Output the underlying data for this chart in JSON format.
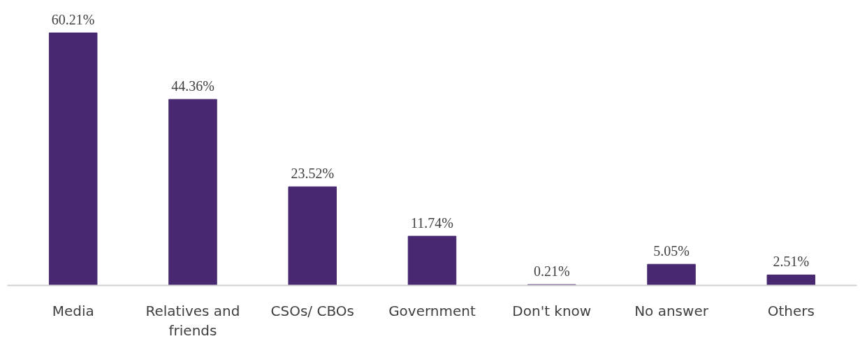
{
  "chart_data": {
    "type": "bar",
    "categories": [
      "Media",
      "Relatives and friends",
      "CSOs/ CBOs",
      "Government",
      "Don't know",
      "No answer",
      "Others"
    ],
    "values": [
      60.21,
      44.36,
      23.52,
      11.74,
      0.21,
      5.05,
      2.51
    ],
    "value_labels": [
      "60.21%",
      "44.36%",
      "23.52%",
      "11.74%",
      "0.21%",
      "5.05%",
      "2.51%"
    ],
    "color": "#482870",
    "grid": false,
    "tick_labels": "x"
  }
}
